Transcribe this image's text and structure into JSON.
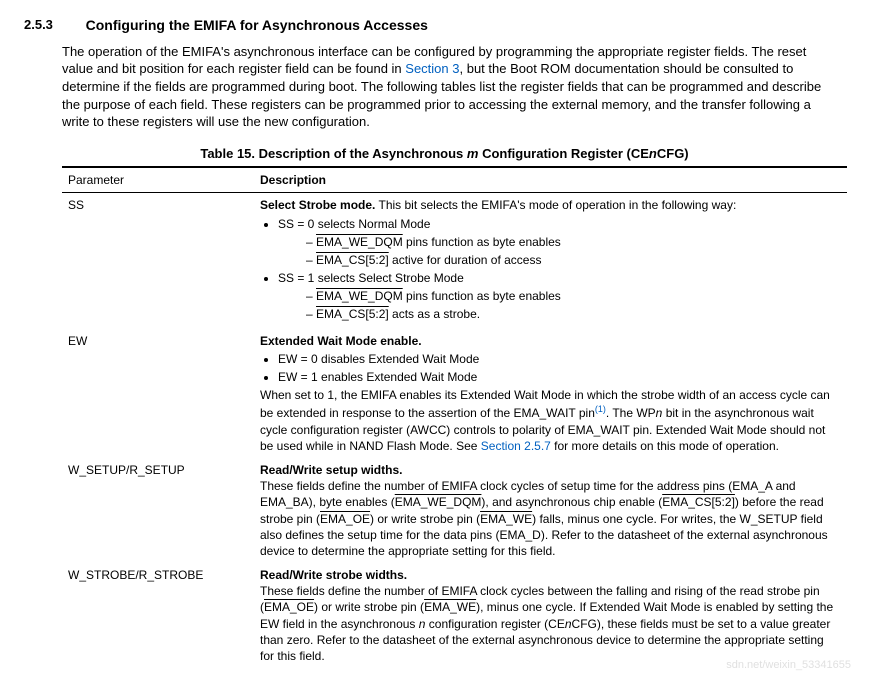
{
  "section": {
    "number": "2.5.3",
    "title": "Configuring the EMIFA for Asynchronous Accesses"
  },
  "para": {
    "p1a": "The operation of the EMIFA's asynchronous interface can be configured by programming the appropriate register fields. The reset value and bit position for each register field can be found in ",
    "p1link": "Section 3",
    "p1b": ", but the Boot ROM documentation should be consulted to determine if the fields are programmed during boot. The following tables list the register fields that can be programmed and describe the purpose of each field. These registers can be programmed prior to accessing the external memory, and the transfer following a write to these registers will use the new configuration."
  },
  "table": {
    "caption_a": "Table 15. Description of the Asynchronous ",
    "caption_m": "m",
    "caption_b": " Configuration Register (CE",
    "caption_n": "n",
    "caption_c": "CFG)",
    "head_param": "Parameter",
    "head_desc": "Description"
  },
  "rows": {
    "ss": {
      "param": "SS",
      "title": "Select Strobe mode.",
      "title_tail": " This bit selects the EMIFA's mode of operation in the following way:",
      "b1a": "SS = 0 selects Normal Mode",
      "b1a_s1_pin": "EMA_WE_DQM",
      "b1a_s1_tail": " pins function as byte enables",
      "b1a_s2_pin": "EMA_CS[5:2]",
      "b1a_s2_tail": " active for duration of access",
      "b1b": "SS = 1 selects Select Strobe Mode",
      "b1b_s1_pin": "EMA_WE_DQM",
      "b1b_s1_tail": " pins function as byte enables",
      "b1b_s2_pin": "EMA_CS[5:2]",
      "b1b_s2_tail": " acts as a strobe."
    },
    "ew": {
      "param": "EW",
      "title": "Extended Wait Mode enable.",
      "b1": "EW = 0 disables Extended Wait Mode",
      "b2": "EW = 1 enables Extended Wait Mode",
      "p_a": "When set to 1, the EMIFA enables its Extended Wait Mode in which the strobe width of an access cycle can be extended in response to the assertion of the EMA_WAIT pin",
      "sup": "(1)",
      "p_b": ". The WP",
      "p_n": "n",
      "p_c": " bit in the asynchronous wait cycle configuration register (AWCC) controls to polarity of EMA_WAIT pin. Extended Wait Mode should not be used while in NAND Flash Mode. See ",
      "p_link": "Section 2.5.7",
      "p_d": " for more details on this mode of operation."
    },
    "setup": {
      "param": "W_SETUP/R_SETUP",
      "title": "Read/Write setup widths.",
      "p_a": "These fields define the number of EMIFA clock cycles of setup time for the address pins (EMA_A and EMA_BA), byte enables (",
      "pin1": "EMA_WE_DQM",
      "p_b": "), and asynchronous chip enable (",
      "pin2": "EMA_CS[5:2]",
      "p_c": ") before the read strobe pin (",
      "pin3": "EMA_OE",
      "p_d": ") or write strobe pin (",
      "pin4": "EMA_WE",
      "p_e": ") falls, minus one cycle. For writes, the W_SETUP field also defines the setup time for the data pins (EMA_D). Refer to the datasheet of the external asynchronous device to determine the appropriate setting for this field."
    },
    "strobe": {
      "param": "W_STROBE/R_STROBE",
      "title": "Read/Write strobe widths.",
      "p_a": "These fields define the number of EMIFA clock cycles between the falling and rising of the read strobe pin (",
      "pin1": "EMA_OE",
      "p_b": ") or write strobe pin (",
      "pin2": "EMA_WE",
      "p_c": "), minus one cycle. If Extended Wait Mode is enabled by setting the EW field in the asynchronous ",
      "p_n": "n",
      "p_d": " configuration register (CE",
      "p_n2": "n",
      "p_e": "CFG), these fields must be set to a value greater than zero. Refer to the datasheet of the external asynchronous device to determine the appropriate setting for this field."
    }
  },
  "watermark": "sdn.net/weixin_53341655",
  "colors": {
    "link": "#0060c0"
  }
}
